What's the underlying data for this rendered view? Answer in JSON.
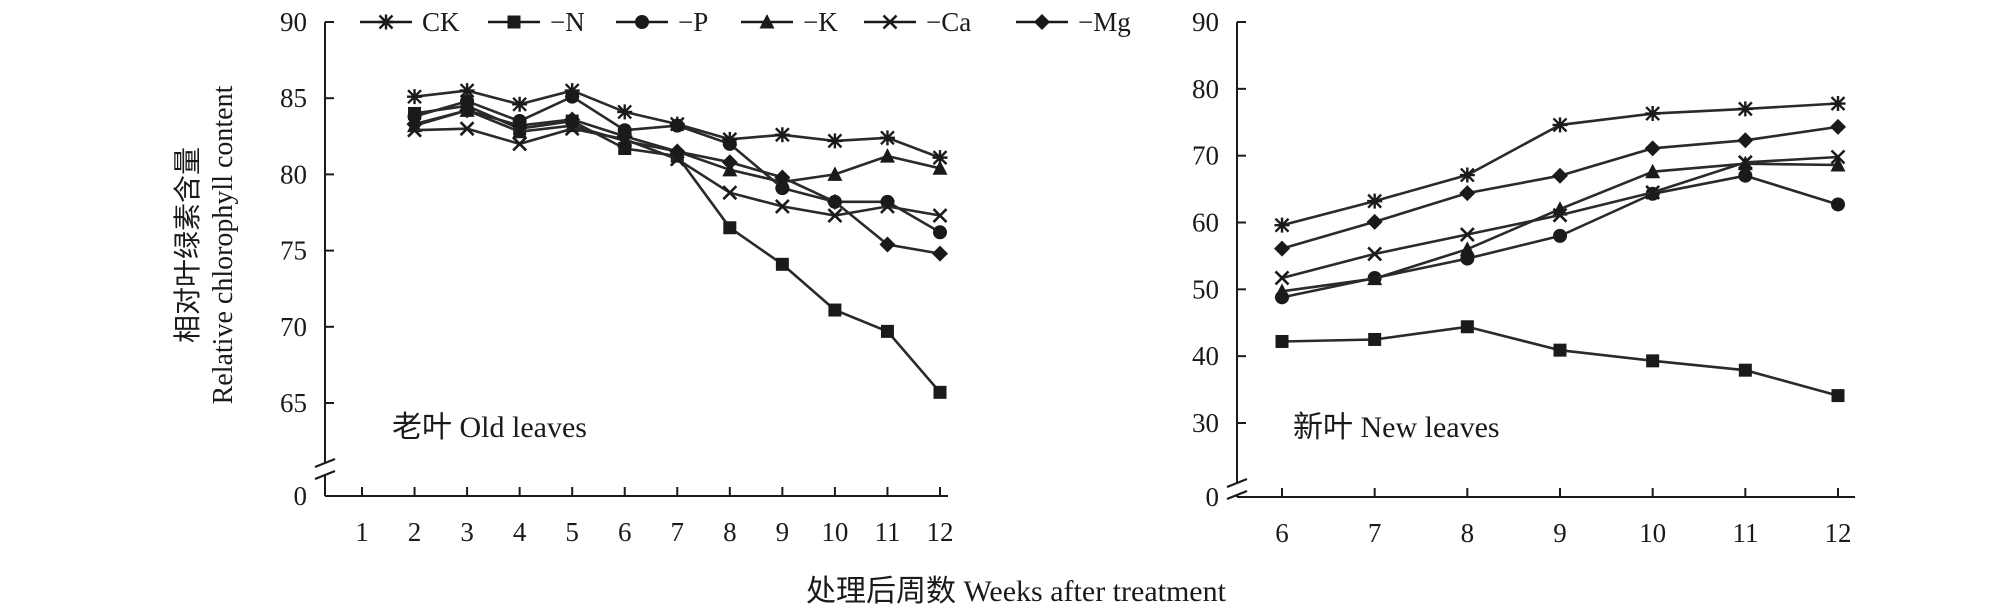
{
  "figure": {
    "xlabel": "处理后周数 Weeks after treatment",
    "ylabel_cn": "相对叶绿素含量",
    "ylabel_en": "Relative chlorophyll content"
  },
  "legend": [
    {
      "name": "CK",
      "marker": "asterisk"
    },
    {
      "name": "−N",
      "marker": "square"
    },
    {
      "name": "−P",
      "marker": "circle"
    },
    {
      "name": "−K",
      "marker": "triangle"
    },
    {
      "name": "−Ca",
      "marker": "cross"
    },
    {
      "name": "−Mg",
      "marker": "diamond"
    }
  ],
  "chart_data": [
    {
      "type": "line",
      "panel_label": "老叶 Old leaves",
      "x": [
        1,
        2,
        3,
        4,
        5,
        6,
        7,
        8,
        9,
        10,
        11,
        12
      ],
      "x_ticks": [
        1,
        2,
        3,
        4,
        5,
        6,
        7,
        8,
        9,
        10,
        11,
        12
      ],
      "y_ticks": [
        0,
        65,
        70,
        75,
        80,
        85,
        90
      ],
      "y_axis_break": true,
      "ylim": [
        62,
        90
      ],
      "xlabel": "",
      "ylabel": "",
      "series": [
        {
          "name": "CK",
          "x": [
            2,
            3,
            4,
            5,
            6,
            7,
            8,
            9,
            10,
            11,
            12
          ],
          "values": [
            85.1,
            85.5,
            84.6,
            85.5,
            84.1,
            83.3,
            82.3,
            82.6,
            82.2,
            82.4,
            81.1
          ]
        },
        {
          "name": "−N",
          "x": [
            2,
            3,
            4,
            5,
            6,
            7,
            8,
            9,
            10,
            11,
            12
          ],
          "values": [
            84.0,
            84.5,
            83.0,
            83.5,
            81.7,
            81.2,
            76.5,
            74.1,
            71.1,
            69.7,
            65.7
          ]
        },
        {
          "name": "−P",
          "x": [
            2,
            3,
            4,
            5,
            6,
            7,
            8,
            9,
            10,
            11,
            12
          ],
          "values": [
            83.8,
            84.8,
            83.5,
            85.1,
            82.9,
            83.2,
            82.0,
            79.1,
            78.2,
            78.2,
            76.2
          ]
        },
        {
          "name": "−K",
          "x": [
            2,
            3,
            4,
            5,
            6,
            7,
            8,
            9,
            10,
            11,
            12
          ],
          "values": [
            83.2,
            84.2,
            82.8,
            83.2,
            82.2,
            81.5,
            80.3,
            79.5,
            80.0,
            81.2,
            80.4
          ]
        },
        {
          "name": "−Ca",
          "x": [
            2,
            3,
            4,
            5,
            6,
            7,
            8,
            9,
            10,
            11,
            12
          ],
          "values": [
            82.9,
            83.0,
            82.0,
            83.0,
            82.3,
            81.0,
            78.8,
            77.9,
            77.3,
            77.9,
            77.3
          ]
        },
        {
          "name": "−Mg",
          "x": [
            2,
            3,
            4,
            5,
            6,
            7,
            8,
            9,
            10,
            11,
            12
          ],
          "values": [
            83.3,
            84.2,
            83.2,
            83.6,
            82.5,
            81.5,
            80.8,
            79.8,
            78.2,
            75.4,
            74.8
          ]
        }
      ]
    },
    {
      "type": "line",
      "panel_label": "新叶 New leaves",
      "x": [
        6,
        7,
        8,
        9,
        10,
        11,
        12
      ],
      "x_ticks": [
        6,
        7,
        8,
        9,
        10,
        11,
        12
      ],
      "y_ticks": [
        0,
        30,
        40,
        50,
        60,
        70,
        80,
        90
      ],
      "y_axis_break": true,
      "ylim": [
        24,
        90
      ],
      "xlabel": "",
      "ylabel": "",
      "series": [
        {
          "name": "CK",
          "x": [
            6,
            7,
            8,
            9,
            10,
            11,
            12
          ],
          "values": [
            59.6,
            63.2,
            67.1,
            74.6,
            76.3,
            77.0,
            77.8
          ]
        },
        {
          "name": "−N",
          "x": [
            6,
            7,
            8,
            9,
            10,
            11,
            12
          ],
          "values": [
            42.2,
            42.5,
            44.4,
            40.9,
            39.3,
            37.9,
            34.1
          ]
        },
        {
          "name": "−P",
          "x": [
            6,
            7,
            8,
            9,
            10,
            11,
            12
          ],
          "values": [
            48.8,
            51.7,
            54.6,
            58.0,
            64.3,
            67.0,
            62.7
          ]
        },
        {
          "name": "−K",
          "x": [
            6,
            7,
            8,
            9,
            10,
            11,
            12
          ],
          "values": [
            49.7,
            51.6,
            56.0,
            62.0,
            67.6,
            68.8,
            68.6
          ]
        },
        {
          "name": "−Ca",
          "x": [
            6,
            7,
            8,
            9,
            10,
            11,
            12
          ],
          "values": [
            51.7,
            55.3,
            58.2,
            61.1,
            64.5,
            69.0,
            69.8
          ]
        },
        {
          "name": "−Mg",
          "x": [
            6,
            7,
            8,
            9,
            10,
            11,
            12
          ],
          "values": [
            56.1,
            60.1,
            64.4,
            67.0,
            71.1,
            72.3,
            74.3
          ]
        }
      ]
    }
  ]
}
